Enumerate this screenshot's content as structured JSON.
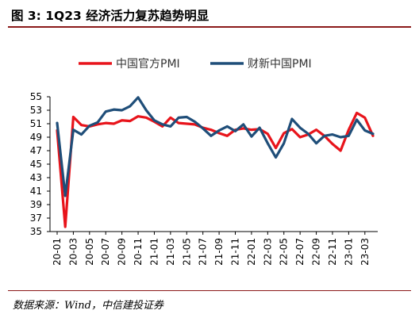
{
  "figure": {
    "title": "图 3: 1Q23 经济活力复苏趋势明显",
    "source": "数据来源：Wind，中信建投证券"
  },
  "chart_data": {
    "type": "line",
    "title": "",
    "xlabel": "",
    "ylabel": "",
    "ylim": [
      35,
      55
    ],
    "yticks": [
      35,
      37,
      39,
      41,
      43,
      45,
      47,
      49,
      51,
      53,
      55
    ],
    "xtick_labels": [
      "20-01",
      "20-03",
      "20-05",
      "20-07",
      "20-09",
      "20-11",
      "21-01",
      "21-03",
      "21-05",
      "21-07",
      "21-09",
      "21-11",
      "22-01",
      "22-03",
      "22-05",
      "22-07",
      "22-09",
      "22-11",
      "23-01",
      "23-03"
    ],
    "grid": false,
    "legend_position": "top",
    "x": [
      "20-01",
      "20-02",
      "20-03",
      "20-04",
      "20-05",
      "20-06",
      "20-07",
      "20-08",
      "20-09",
      "20-10",
      "20-11",
      "20-12",
      "21-01",
      "21-02",
      "21-03",
      "21-04",
      "21-05",
      "21-06",
      "21-07",
      "21-08",
      "21-09",
      "21-10",
      "21-11",
      "21-12",
      "22-01",
      "22-02",
      "22-03",
      "22-04",
      "22-05",
      "22-06",
      "22-07",
      "22-08",
      "22-09",
      "22-10",
      "22-11",
      "22-12",
      "23-01",
      "23-02",
      "23-03",
      "23-04"
    ],
    "series": [
      {
        "name": "中国官方PMI",
        "color": "#e8141b",
        "values": [
          50.0,
          35.7,
          52.0,
          50.8,
          50.6,
          50.9,
          51.1,
          51.0,
          51.5,
          51.4,
          52.1,
          51.9,
          51.3,
          50.6,
          51.9,
          51.1,
          51.0,
          50.9,
          50.4,
          50.1,
          49.6,
          49.2,
          50.1,
          50.3,
          50.1,
          50.2,
          49.5,
          47.4,
          49.6,
          50.2,
          49.0,
          49.4,
          50.1,
          49.2,
          48.0,
          47.0,
          50.1,
          52.6,
          51.9,
          49.2
        ]
      },
      {
        "name": "财新中国PMI",
        "color": "#1f4e79",
        "values": [
          51.1,
          40.3,
          50.1,
          49.4,
          50.7,
          51.2,
          52.8,
          53.1,
          53.0,
          53.6,
          54.9,
          53.0,
          51.5,
          50.9,
          50.6,
          51.9,
          52.0,
          51.3,
          50.3,
          49.2,
          50.0,
          50.6,
          49.9,
          50.9,
          49.1,
          50.4,
          48.1,
          46.0,
          48.1,
          51.7,
          50.4,
          49.5,
          48.1,
          49.2,
          49.4,
          49.0,
          49.2,
          51.6,
          50.0,
          49.5
        ]
      }
    ]
  }
}
